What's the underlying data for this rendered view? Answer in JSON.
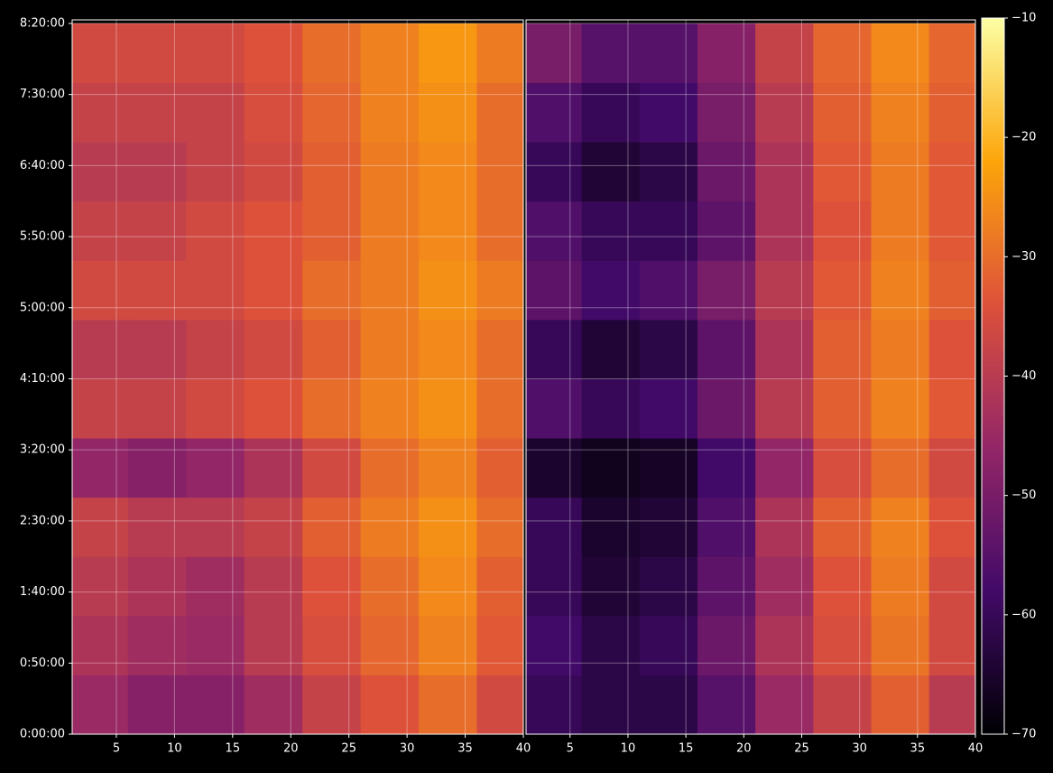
{
  "chart_data": {
    "type": "heatmap",
    "x_bins": [
      1.2,
      6,
      11,
      16,
      21,
      26,
      31,
      36,
      40
    ],
    "y_bins": [
      0,
      2500,
      5000,
      7500,
      10000,
      12500,
      15000,
      17500,
      20000,
      22500,
      25000,
      27500,
      30000
    ],
    "panels": [
      {
        "values": [
          [
            -45,
            -48,
            -48,
            -44,
            -38,
            -34,
            -30,
            -36
          ],
          [
            -42,
            -44,
            -45,
            -40,
            -35,
            -31,
            -27,
            -33
          ],
          [
            -40,
            -42,
            -44,
            -40,
            -34,
            -30,
            -26,
            -32
          ],
          [
            -38,
            -40,
            -40,
            -38,
            -32,
            -28,
            -25,
            -30
          ],
          [
            -46,
            -48,
            -46,
            -42,
            -36,
            -30,
            -27,
            -32
          ],
          [
            -38,
            -38,
            -36,
            -34,
            -30,
            -27,
            -25,
            -30
          ],
          [
            -40,
            -40,
            -38,
            -36,
            -32,
            -28,
            -26,
            -30
          ],
          [
            -36,
            -36,
            -36,
            -34,
            -30,
            -28,
            -25,
            -28
          ],
          [
            -38,
            -38,
            -36,
            -34,
            -32,
            -28,
            -26,
            -30
          ],
          [
            -40,
            -40,
            -38,
            -36,
            -32,
            -28,
            -26,
            -30
          ],
          [
            -38,
            -38,
            -38,
            -35,
            -31,
            -27,
            -25,
            -30
          ],
          [
            -36,
            -36,
            -36,
            -34,
            -30,
            -27,
            -24,
            -28
          ]
        ]
      },
      {
        "values": [
          [
            -60,
            -62,
            -62,
            -55,
            -45,
            -38,
            -32,
            -40
          ],
          [
            -58,
            -62,
            -60,
            -52,
            -42,
            -35,
            -29,
            -36
          ],
          [
            -60,
            -64,
            -62,
            -54,
            -44,
            -34,
            -28,
            -36
          ],
          [
            -60,
            -65,
            -64,
            -56,
            -42,
            -32,
            -27,
            -34
          ],
          [
            -65,
            -67,
            -66,
            -58,
            -46,
            -35,
            -30,
            -36
          ],
          [
            -56,
            -60,
            -58,
            -52,
            -40,
            -32,
            -27,
            -33
          ],
          [
            -60,
            -64,
            -62,
            -54,
            -42,
            -32,
            -28,
            -34
          ],
          [
            -54,
            -58,
            -56,
            -50,
            -40,
            -33,
            -27,
            -32
          ],
          [
            -56,
            -60,
            -60,
            -54,
            -42,
            -34,
            -28,
            -33
          ],
          [
            -60,
            -64,
            -62,
            -52,
            -42,
            -33,
            -28,
            -33
          ],
          [
            -56,
            -60,
            -58,
            -50,
            -40,
            -32,
            -27,
            -32
          ],
          [
            -50,
            -55,
            -55,
            -48,
            -38,
            -31,
            -26,
            -31
          ]
        ]
      }
    ],
    "xlim": [
      1.2,
      40
    ],
    "xticks": [
      5,
      10,
      15,
      20,
      25,
      30,
      35,
      40
    ],
    "ylim": [
      0,
      30150
    ],
    "yticks": [
      {
        "value": 0,
        "label": "0:00:00"
      },
      {
        "value": 3000,
        "label": "0:50:00"
      },
      {
        "value": 6000,
        "label": "1:40:00"
      },
      {
        "value": 9000,
        "label": "2:30:00"
      },
      {
        "value": 12000,
        "label": "3:20:00"
      },
      {
        "value": 15000,
        "label": "4:10:00"
      },
      {
        "value": 18000,
        "label": "5:00:00"
      },
      {
        "value": 21000,
        "label": "5:50:00"
      },
      {
        "value": 24000,
        "label": "6:40:00"
      },
      {
        "value": 27000,
        "label": "7:30:00"
      },
      {
        "value": 30000,
        "label": "8:20:00"
      }
    ],
    "clim": [
      -70,
      -10
    ],
    "cticks": [
      {
        "value": -70,
        "label": "−70"
      },
      {
        "value": -60,
        "label": "−60"
      },
      {
        "value": -50,
        "label": "−50"
      },
      {
        "value": -40,
        "label": "−40"
      },
      {
        "value": -30,
        "label": "−30"
      },
      {
        "value": -20,
        "label": "−20"
      },
      {
        "value": -10,
        "label": "−10"
      }
    ],
    "colormap": [
      "#000004",
      "#420a68",
      "#932667",
      "#dd513a",
      "#fca50a",
      "#fcffa4"
    ],
    "grid": true
  }
}
